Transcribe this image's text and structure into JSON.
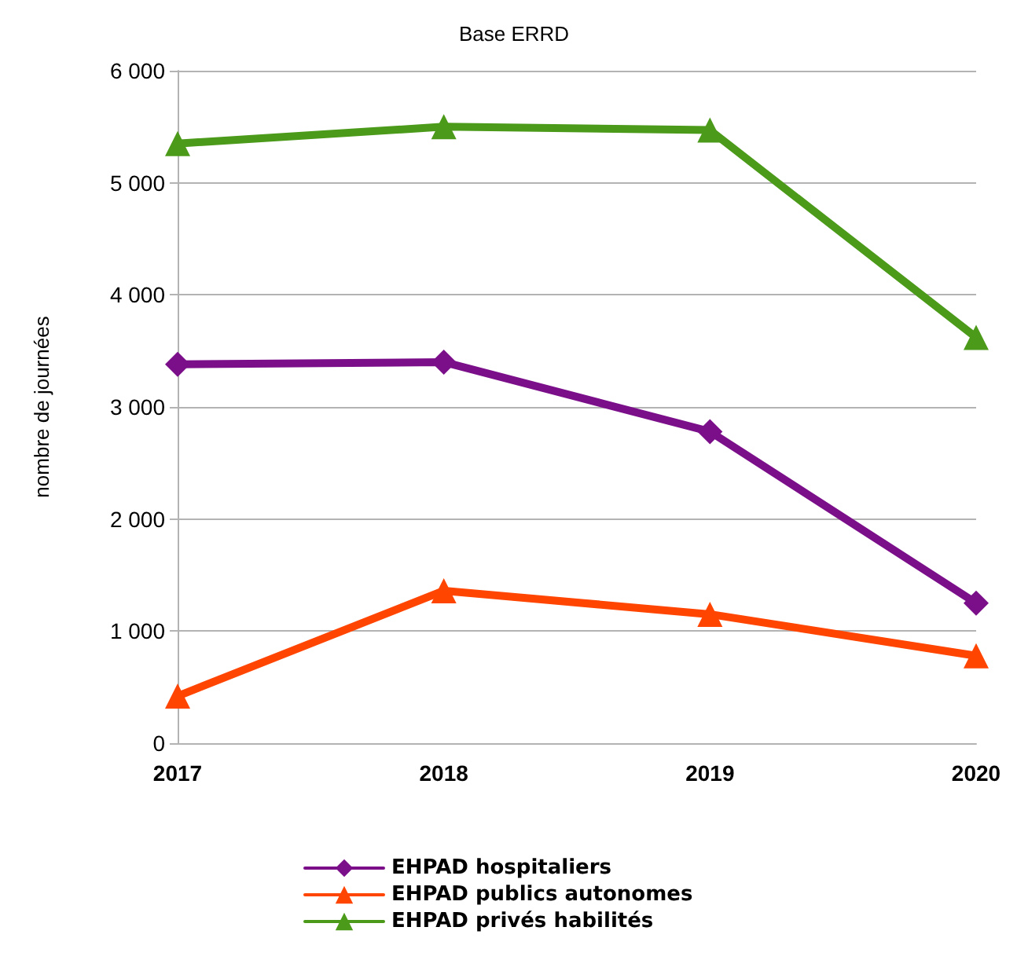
{
  "chart_data": {
    "type": "line",
    "title": "Base ERRD",
    "ylabel": "nombre de journées",
    "categories": [
      "2017",
      "2018",
      "2019",
      "2020"
    ],
    "series": [
      {
        "name": "EHPAD hospitaliers",
        "color": "#7b0f8a",
        "marker": "diamond",
        "values": [
          3380,
          3400,
          2780,
          1250
        ]
      },
      {
        "name": "EHPAD publics autonomes",
        "color": "#ff4500",
        "marker": "triangle",
        "values": [
          420,
          1360,
          1150,
          780
        ]
      },
      {
        "name": "EHPAD privés habilités",
        "color": "#4c9a1a",
        "marker": "triangle",
        "values": [
          5350,
          5500,
          5470,
          3620
        ]
      }
    ],
    "ylim": [
      0,
      6000
    ],
    "yticks": [
      0,
      {
        "value": 1000,
        "label": "1 000"
      },
      {
        "value": 2000,
        "label": "2 000"
      },
      {
        "value": 3000,
        "label": "3 000"
      },
      {
        "value": 4000,
        "label": "4 000"
      },
      {
        "value": 5000,
        "label": "5 000"
      },
      {
        "value": 6000,
        "label": "6 000"
      }
    ],
    "grid": "y",
    "legend": "bottom",
    "line_style": "solid"
  }
}
